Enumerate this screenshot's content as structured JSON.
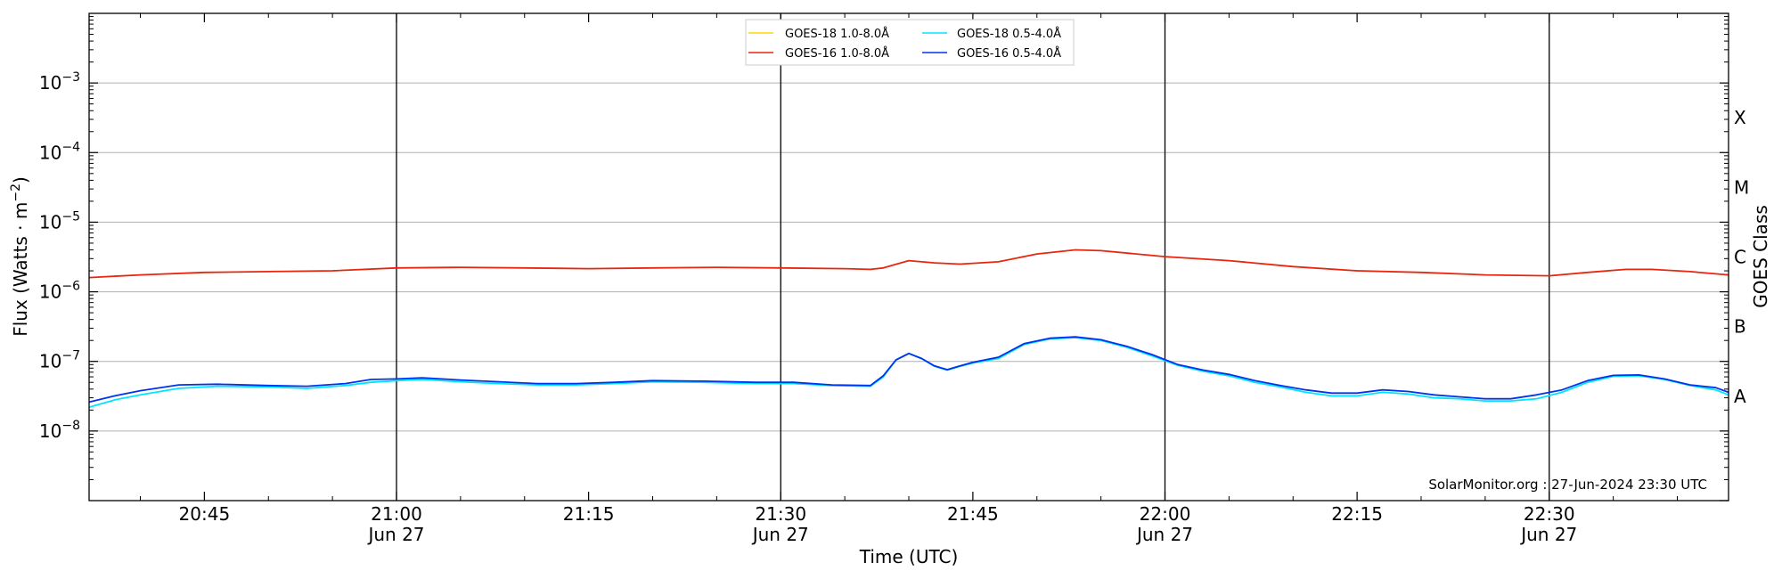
{
  "chart_data": {
    "type": "line",
    "xlabel": "Time (UTC)",
    "ylabel": "Flux (Watts · m",
    "ylabel_sup": "−2",
    "ylabel_close": ")",
    "right_label": "GOES Class",
    "y_scale": "log",
    "ylim": [
      1e-09,
      0.01
    ],
    "xlim": [
      "20:36",
      "22:44"
    ],
    "grid": "horizontal at decades",
    "legend_placement": "top-center",
    "credit": "SolarMonitor.org : 27-Jun-2024 23:30 UTC",
    "y_ticks": [
      {
        "value": 1e-08,
        "base": "10",
        "exp": "−8"
      },
      {
        "value": 1e-07,
        "base": "10",
        "exp": "−7"
      },
      {
        "value": 1e-06,
        "base": "10",
        "exp": "−6"
      },
      {
        "value": 1e-05,
        "base": "10",
        "exp": "−5"
      },
      {
        "value": 0.0001,
        "base": "10",
        "exp": "−4"
      },
      {
        "value": 0.001,
        "base": "10",
        "exp": "−3"
      }
    ],
    "x_ticks": [
      {
        "time": "20:45",
        "label": "20:45",
        "date": ""
      },
      {
        "time": "21:00",
        "label": "21:00",
        "date": "Jun 27"
      },
      {
        "time": "21:15",
        "label": "21:15",
        "date": ""
      },
      {
        "time": "21:30",
        "label": "21:30",
        "date": "Jun 27"
      },
      {
        "time": "21:45",
        "label": "21:45",
        "date": ""
      },
      {
        "time": "22:00",
        "label": "22:00",
        "date": "Jun 27"
      },
      {
        "time": "22:15",
        "label": "22:15",
        "date": ""
      },
      {
        "time": "22:30",
        "label": "22:30",
        "date": "Jun 27"
      }
    ],
    "vlines": [
      "21:00",
      "21:30",
      "22:00",
      "22:30"
    ],
    "goes_classes": [
      {
        "label": "A",
        "value": 3.16e-08
      },
      {
        "label": "B",
        "value": 3.16e-07
      },
      {
        "label": "C",
        "value": 3.16e-06
      },
      {
        "label": "M",
        "value": 3.16e-05
      },
      {
        "label": "X",
        "value": 0.000316
      }
    ],
    "series": [
      {
        "name": "GOES-18 1.0-8.0Å",
        "color": "#ffd700",
        "points": []
      },
      {
        "name": "GOES-18 0.5-4.0Å",
        "color": "#00e5ff",
        "points": [
          [
            "20:36",
            2.2e-08
          ],
          [
            "20:38",
            2.8e-08
          ],
          [
            "20:40",
            3.3e-08
          ],
          [
            "20:43",
            4.1e-08
          ],
          [
            "20:46",
            4.4e-08
          ],
          [
            "20:50",
            4.3e-08
          ],
          [
            "20:53",
            4.1e-08
          ],
          [
            "20:56",
            4.5e-08
          ],
          [
            "20:58",
            5e-08
          ],
          [
            "21:00",
            5.3e-08
          ],
          [
            "21:02",
            5.5e-08
          ],
          [
            "21:05",
            5.1e-08
          ],
          [
            "21:08",
            4.8e-08
          ],
          [
            "21:11",
            4.6e-08
          ],
          [
            "21:14",
            4.6e-08
          ],
          [
            "21:17",
            4.8e-08
          ],
          [
            "21:20",
            5.1e-08
          ],
          [
            "21:24",
            5e-08
          ],
          [
            "21:28",
            4.8e-08
          ],
          [
            "21:31",
            4.8e-08
          ],
          [
            "21:34",
            4.5e-08
          ],
          [
            "21:37",
            4.4e-08
          ],
          [
            "21:38",
            6e-08
          ],
          [
            "21:39",
            1.05e-07
          ],
          [
            "21:40",
            1.3e-07
          ],
          [
            "21:41",
            1.1e-07
          ],
          [
            "21:42",
            8.5e-08
          ],
          [
            "21:43",
            7.5e-08
          ],
          [
            "21:44",
            8.5e-08
          ],
          [
            "21:45",
            9.5e-08
          ],
          [
            "21:47",
            1.1e-07
          ],
          [
            "21:49",
            1.75e-07
          ],
          [
            "21:51",
            2.1e-07
          ],
          [
            "21:53",
            2.2e-07
          ],
          [
            "21:55",
            2e-07
          ],
          [
            "21:57",
            1.6e-07
          ],
          [
            "21:59",
            1.2e-07
          ],
          [
            "22:01",
            8.8e-08
          ],
          [
            "22:03",
            7.2e-08
          ],
          [
            "22:05",
            6.2e-08
          ],
          [
            "22:07",
            5e-08
          ],
          [
            "22:09",
            4.3e-08
          ],
          [
            "22:11",
            3.6e-08
          ],
          [
            "22:13",
            3.2e-08
          ],
          [
            "22:15",
            3.2e-08
          ],
          [
            "22:17",
            3.6e-08
          ],
          [
            "22:19",
            3.4e-08
          ],
          [
            "22:21",
            3e-08
          ],
          [
            "22:23",
            2.9e-08
          ],
          [
            "22:25",
            2.7e-08
          ],
          [
            "22:27",
            2.7e-08
          ],
          [
            "22:29",
            2.9e-08
          ],
          [
            "22:31",
            3.6e-08
          ],
          [
            "22:33",
            5e-08
          ],
          [
            "22:35",
            6.1e-08
          ],
          [
            "22:37",
            6.2e-08
          ],
          [
            "22:39",
            5.5e-08
          ],
          [
            "22:41",
            4.5e-08
          ],
          [
            "22:43",
            3.9e-08
          ],
          [
            "22:44",
            3.3e-08
          ]
        ]
      },
      {
        "name": "GOES-16 1.0-8.0Å",
        "color": "#e8260e",
        "points": [
          [
            "20:36",
            1.6e-06
          ],
          [
            "20:40",
            1.75e-06
          ],
          [
            "20:45",
            1.9e-06
          ],
          [
            "20:50",
            1.95e-06
          ],
          [
            "20:55",
            2e-06
          ],
          [
            "21:00",
            2.2e-06
          ],
          [
            "21:05",
            2.25e-06
          ],
          [
            "21:10",
            2.2e-06
          ],
          [
            "21:15",
            2.15e-06
          ],
          [
            "21:20",
            2.2e-06
          ],
          [
            "21:25",
            2.25e-06
          ],
          [
            "21:30",
            2.2e-06
          ],
          [
            "21:35",
            2.15e-06
          ],
          [
            "21:37",
            2.1e-06
          ],
          [
            "21:38",
            2.2e-06
          ],
          [
            "21:40",
            2.8e-06
          ],
          [
            "21:42",
            2.6e-06
          ],
          [
            "21:44",
            2.5e-06
          ],
          [
            "21:47",
            2.7e-06
          ],
          [
            "21:50",
            3.5e-06
          ],
          [
            "21:53",
            4e-06
          ],
          [
            "21:55",
            3.9e-06
          ],
          [
            "22:00",
            3.2e-06
          ],
          [
            "22:05",
            2.8e-06
          ],
          [
            "22:10",
            2.3e-06
          ],
          [
            "22:15",
            2e-06
          ],
          [
            "22:20",
            1.9e-06
          ],
          [
            "22:25",
            1.75e-06
          ],
          [
            "22:30",
            1.7e-06
          ],
          [
            "22:33",
            1.9e-06
          ],
          [
            "22:36",
            2.1e-06
          ],
          [
            "22:38",
            2.1e-06
          ],
          [
            "22:41",
            1.95e-06
          ],
          [
            "22:44",
            1.75e-06
          ]
        ]
      },
      {
        "name": "GOES-16 0.5-4.0Å",
        "color": "#0033ee",
        "points": [
          [
            "20:36",
            2.6e-08
          ],
          [
            "20:38",
            3.2e-08
          ],
          [
            "20:40",
            3.8e-08
          ],
          [
            "20:43",
            4.6e-08
          ],
          [
            "20:46",
            4.7e-08
          ],
          [
            "20:50",
            4.5e-08
          ],
          [
            "20:53",
            4.4e-08
          ],
          [
            "20:56",
            4.8e-08
          ],
          [
            "20:58",
            5.5e-08
          ],
          [
            "21:00",
            5.6e-08
          ],
          [
            "21:02",
            5.8e-08
          ],
          [
            "21:05",
            5.4e-08
          ],
          [
            "21:08",
            5.1e-08
          ],
          [
            "21:11",
            4.8e-08
          ],
          [
            "21:14",
            4.8e-08
          ],
          [
            "21:17",
            5e-08
          ],
          [
            "21:20",
            5.3e-08
          ],
          [
            "21:24",
            5.2e-08
          ],
          [
            "21:28",
            5e-08
          ],
          [
            "21:31",
            5e-08
          ],
          [
            "21:34",
            4.6e-08
          ],
          [
            "21:37",
            4.5e-08
          ],
          [
            "21:38",
            6.2e-08
          ],
          [
            "21:39",
            1.05e-07
          ],
          [
            "21:40",
            1.3e-07
          ],
          [
            "21:41",
            1.1e-07
          ],
          [
            "21:42",
            8.6e-08
          ],
          [
            "21:43",
            7.6e-08
          ],
          [
            "21:44",
            8.6e-08
          ],
          [
            "21:45",
            9.7e-08
          ],
          [
            "21:47",
            1.15e-07
          ],
          [
            "21:49",
            1.8e-07
          ],
          [
            "21:51",
            2.15e-07
          ],
          [
            "21:53",
            2.25e-07
          ],
          [
            "21:55",
            2.05e-07
          ],
          [
            "21:57",
            1.65e-07
          ],
          [
            "21:59",
            1.25e-07
          ],
          [
            "22:01",
            9e-08
          ],
          [
            "22:03",
            7.5e-08
          ],
          [
            "22:05",
            6.5e-08
          ],
          [
            "22:07",
            5.3e-08
          ],
          [
            "22:09",
            4.5e-08
          ],
          [
            "22:11",
            3.9e-08
          ],
          [
            "22:13",
            3.5e-08
          ],
          [
            "22:15",
            3.5e-08
          ],
          [
            "22:17",
            3.9e-08
          ],
          [
            "22:19",
            3.7e-08
          ],
          [
            "22:21",
            3.3e-08
          ],
          [
            "22:23",
            3.1e-08
          ],
          [
            "22:25",
            2.9e-08
          ],
          [
            "22:27",
            2.9e-08
          ],
          [
            "22:29",
            3.3e-08
          ],
          [
            "22:31",
            3.9e-08
          ],
          [
            "22:33",
            5.3e-08
          ],
          [
            "22:35",
            6.3e-08
          ],
          [
            "22:37",
            6.4e-08
          ],
          [
            "22:39",
            5.6e-08
          ],
          [
            "22:41",
            4.6e-08
          ],
          [
            "22:43",
            4.2e-08
          ],
          [
            "22:44",
            3.6e-08
          ]
        ]
      }
    ]
  }
}
